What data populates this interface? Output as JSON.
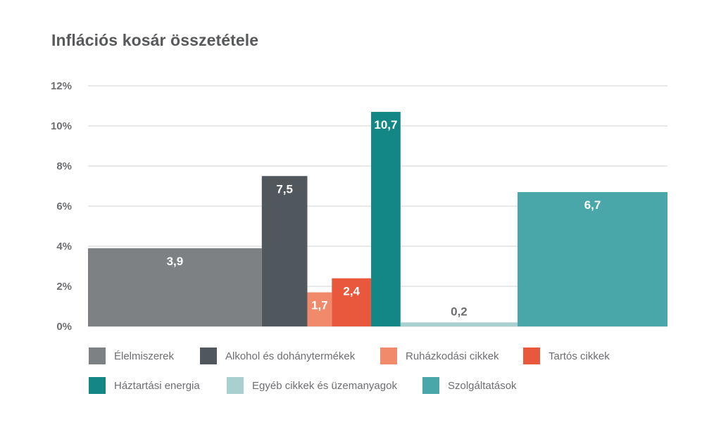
{
  "chart_data": {
    "type": "bar",
    "title": "Inflációs kosár összetétele",
    "xlabel": "",
    "ylabel": "",
    "ylim": [
      0,
      12
    ],
    "yticks": [
      "0%",
      "2%",
      "4%",
      "6%",
      "8%",
      "10%",
      "12%"
    ],
    "ytick_values": [
      0,
      2,
      4,
      6,
      8,
      10,
      12
    ],
    "grid": true,
    "legend_position": "bottom",
    "bar_width_note": "bar widths represent category weight in the basket",
    "series": [
      {
        "name": "Élelmiszerek",
        "value": 3.9,
        "label": "3,9",
        "weight": 24.8,
        "color": "#7d8184",
        "label_color": "#ffffff"
      },
      {
        "name": "Alkohol és dohánytermékek",
        "value": 7.5,
        "label": "7,5",
        "weight": 6.5,
        "color": "#50575d",
        "label_color": "#ffffff"
      },
      {
        "name": "Ruházkodási cikkek",
        "value": 1.7,
        "label": "1,7",
        "weight": 3.5,
        "color": "#f18a6b",
        "label_color": "#ffffff"
      },
      {
        "name": "Tartós cikkek",
        "value": 2.4,
        "label": "2,4",
        "weight": 5.6,
        "color": "#e9583d",
        "label_color": "#ffffff"
      },
      {
        "name": "Háztartási energia",
        "value": 10.7,
        "label": "10,7",
        "weight": 4.2,
        "color": "#138785",
        "label_color": "#ffffff"
      },
      {
        "name": "Egyéb cikkek és üzemanyagok",
        "value": 0.2,
        "label": "0,2",
        "weight": 16.7,
        "color": "#a9d0d1",
        "label_color": "#6d6e71"
      },
      {
        "name": "Szolgáltatások",
        "value": 6.7,
        "label": "6,7",
        "weight": 21.4,
        "color": "#49a7a9",
        "label_color": "#ffffff"
      }
    ]
  },
  "legend": [
    [
      "Élelmiszerek",
      "Alkohol és dohánytermékek",
      "Ruházkodási cikkek",
      "Tartós cikkek"
    ],
    [
      "Háztartási energia",
      "Egyéb cikkek és üzemanyagok",
      "Szolgáltatások"
    ]
  ]
}
